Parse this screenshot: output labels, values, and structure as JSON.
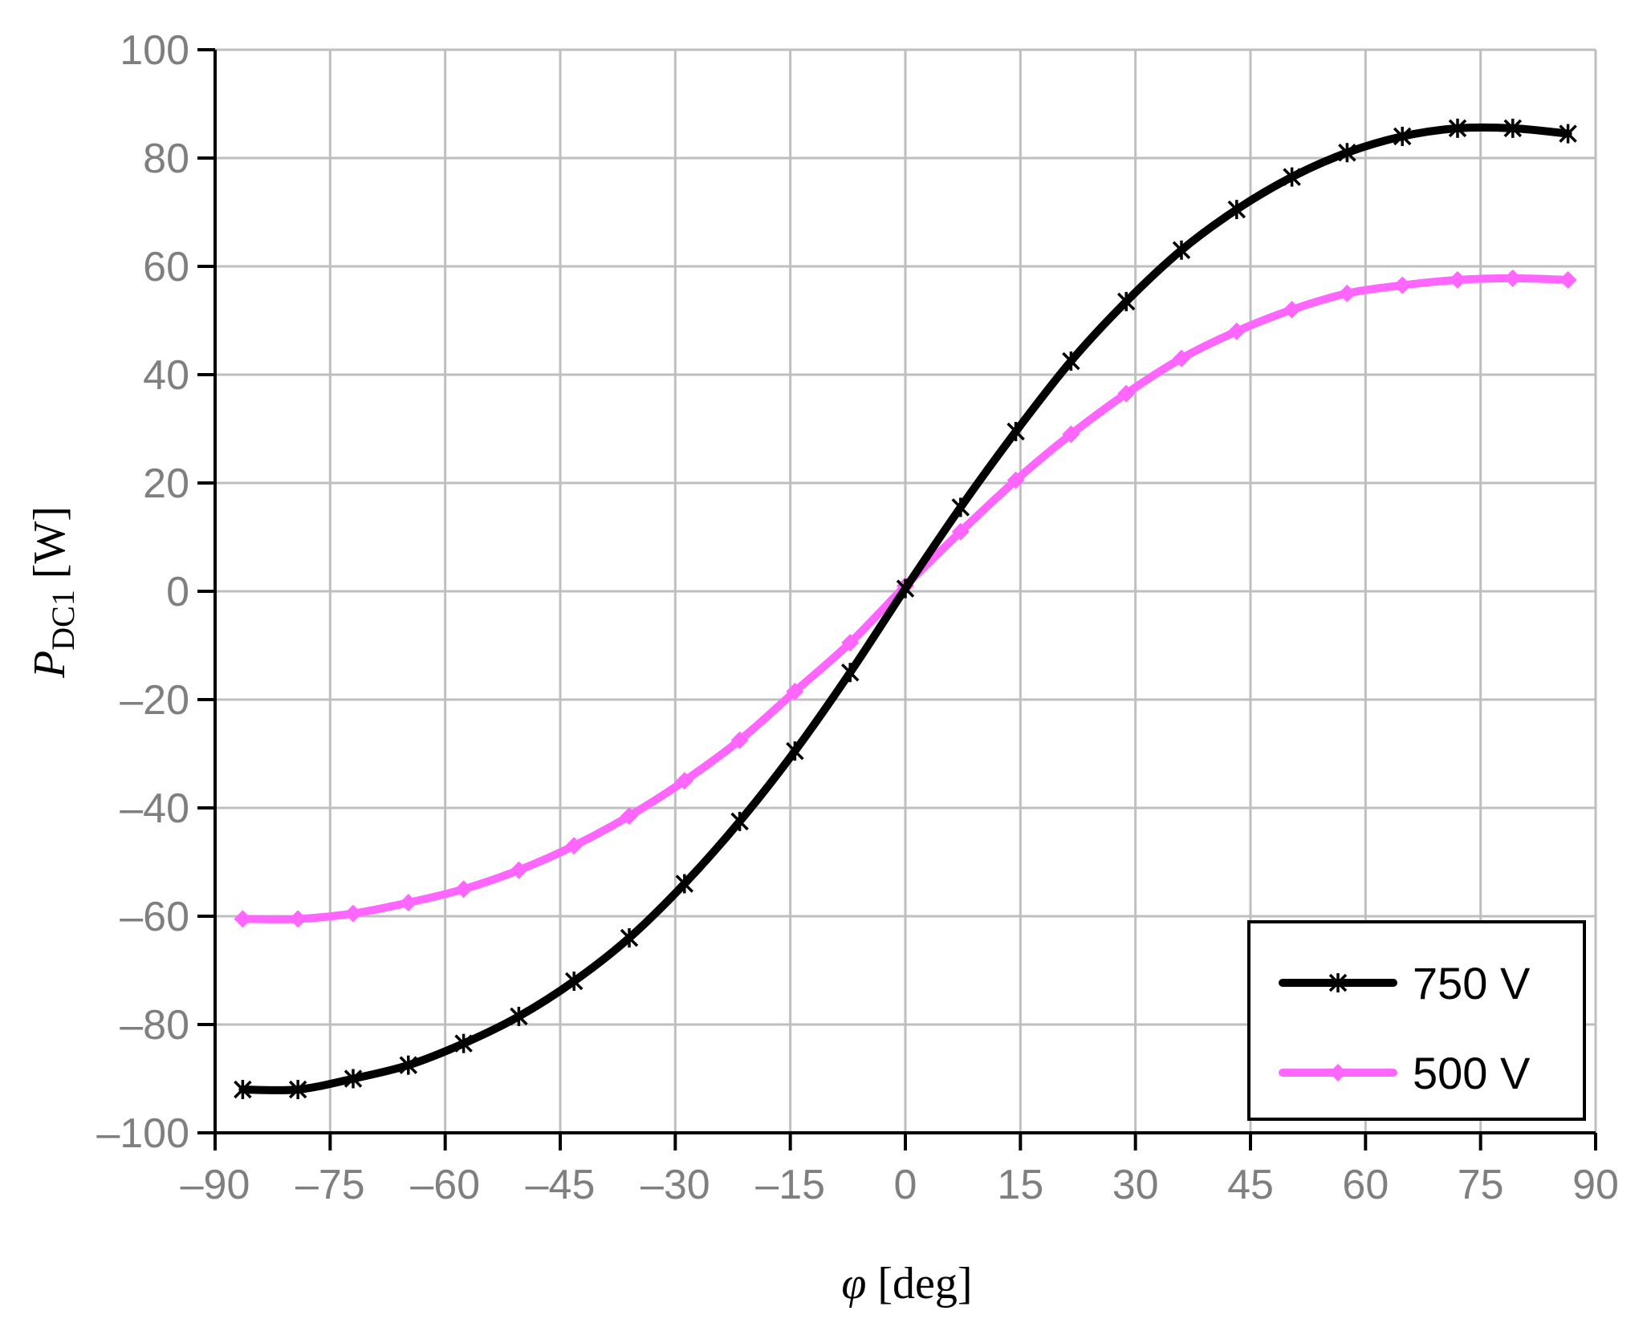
{
  "chart_data": {
    "type": "line",
    "xlabel_symbol": "φ",
    "xlabel_unit": " [deg]",
    "ylabel_symbol": "P",
    "ylabel_subscript": "DC1",
    "ylabel_unit": " [W]",
    "xlim": [
      -90,
      90
    ],
    "ylim": [
      -100,
      100
    ],
    "x_ticks": [
      -90,
      -75,
      -60,
      -45,
      -30,
      -15,
      0,
      15,
      30,
      45,
      60,
      75,
      90
    ],
    "x_tick_labels": [
      "–90",
      "–75",
      "–60",
      "–45",
      "–30",
      "–15",
      "0",
      "15",
      "30",
      "45",
      "60",
      "75",
      "90"
    ],
    "y_ticks": [
      100,
      80,
      60,
      40,
      20,
      0,
      -20,
      -40,
      -60,
      -80,
      -100
    ],
    "y_tick_labels": [
      "100",
      "80",
      "60",
      "40",
      "20",
      "0",
      "–20",
      "–40",
      "–60",
      "–80",
      "–100"
    ],
    "grid": true,
    "legend_position": "bottom-right",
    "x": [
      -86.4,
      -79.2,
      -72,
      -64.8,
      -57.6,
      -50.4,
      -43.2,
      -36,
      -28.8,
      -21.6,
      -14.4,
      -7.2,
      0,
      7.2,
      14.4,
      21.6,
      28.8,
      36,
      43.2,
      50.4,
      57.6,
      64.8,
      72,
      79.2,
      86.4
    ],
    "series": [
      {
        "name": "750 V",
        "color": "#000000",
        "marker": "asterisk",
        "values": [
          -92,
          -92,
          -90,
          -87.5,
          -83.5,
          -78.5,
          -72,
          -64,
          -54,
          -42.5,
          -29.5,
          -15,
          0.5,
          15.5,
          29.5,
          42.5,
          53.5,
          63,
          70.5,
          76.5,
          81,
          84,
          85.5,
          85.5,
          84.5
        ]
      },
      {
        "name": "500 V",
        "color": "#ff66ff",
        "marker": "diamond",
        "values": [
          -60.5,
          -60.5,
          -59.5,
          -57.5,
          -55,
          -51.5,
          -47,
          -41.5,
          -35,
          -27.5,
          -18.5,
          -9.5,
          1,
          11,
          20.5,
          29,
          36.5,
          43,
          48,
          52,
          55,
          56.5,
          57.5,
          57.8,
          57.5
        ]
      }
    ]
  }
}
